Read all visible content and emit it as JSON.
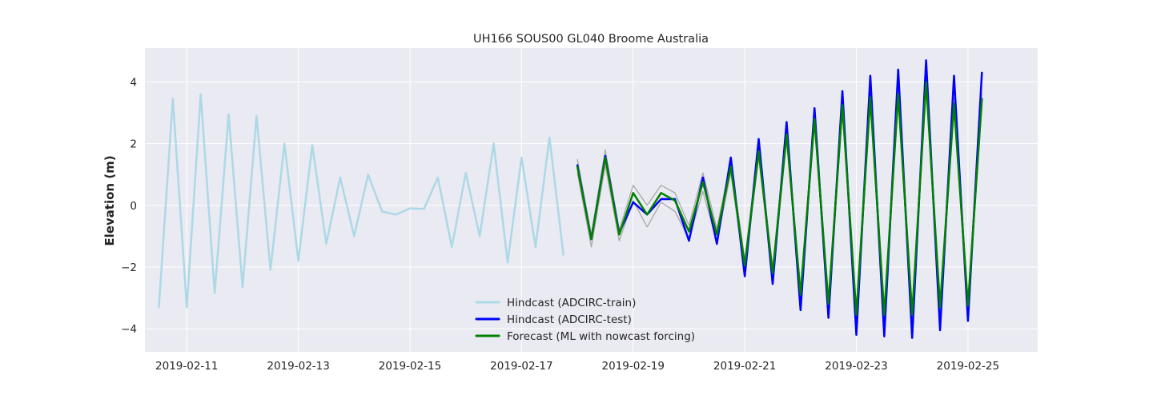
{
  "chart_data": {
    "type": "line",
    "title": "UH166 SOUS00 GL040 Broome Australia",
    "xlabel": "",
    "ylabel": "Elevation (m)",
    "x_axis_type": "date",
    "xlim": [
      "2019-02-10T06:00",
      "2019-02-26T06:00"
    ],
    "ylim": [
      -4.75,
      5.1
    ],
    "x_ticks": [
      "2019-02-11",
      "2019-02-13",
      "2019-02-15",
      "2019-02-17",
      "2019-02-19",
      "2019-02-21",
      "2019-02-23",
      "2019-02-25"
    ],
    "y_ticks": [
      -4,
      -2,
      0,
      2,
      4
    ],
    "y_tick_labels": [
      "−4",
      "−2",
      "0",
      "2",
      "4"
    ],
    "grid": true,
    "background": "#eaeaf2",
    "legend_position": "lower-center",
    "series": [
      {
        "name": "Hindcast (ADCIRC-train)",
        "color": "#add8e6",
        "x": [
          "2019-02-10T12:00",
          "2019-02-10T18:00",
          "2019-02-11T00:00",
          "2019-02-11T06:00",
          "2019-02-11T12:00",
          "2019-02-11T18:00",
          "2019-02-12T00:00",
          "2019-02-12T06:00",
          "2019-02-12T12:00",
          "2019-02-12T18:00",
          "2019-02-13T00:00",
          "2019-02-13T06:00",
          "2019-02-13T12:00",
          "2019-02-13T18:00",
          "2019-02-14T00:00",
          "2019-02-14T06:00",
          "2019-02-14T12:00",
          "2019-02-14T18:00",
          "2019-02-15T00:00",
          "2019-02-15T06:00",
          "2019-02-15T12:00",
          "2019-02-15T18:00",
          "2019-02-16T00:00",
          "2019-02-16T06:00",
          "2019-02-16T12:00",
          "2019-02-16T18:00",
          "2019-02-17T00:00",
          "2019-02-17T06:00",
          "2019-02-17T12:00",
          "2019-02-17T18:00"
        ],
        "y": [
          -3.3,
          3.45,
          -3.3,
          3.6,
          -2.85,
          2.95,
          -2.65,
          2.9,
          -2.1,
          2.0,
          -1.8,
          1.95,
          -1.25,
          0.9,
          -1.0,
          1.0,
          -0.2,
          -0.3,
          -0.1,
          -0.12,
          0.9,
          -1.35,
          1.05,
          -1.0,
          2.0,
          -1.85,
          1.55,
          -1.35,
          2.2,
          -1.6
        ]
      },
      {
        "name": "Hindcast (ADCIRC-test)",
        "color": "#0000ff",
        "x": [
          "2019-02-18T00:00",
          "2019-02-18T06:00",
          "2019-02-18T12:00",
          "2019-02-18T18:00",
          "2019-02-19T00:00",
          "2019-02-19T06:00",
          "2019-02-19T12:00",
          "2019-02-19T18:00",
          "2019-02-20T00:00",
          "2019-02-20T06:00",
          "2019-02-20T12:00",
          "2019-02-20T18:00",
          "2019-02-21T00:00",
          "2019-02-21T06:00",
          "2019-02-21T12:00",
          "2019-02-21T18:00",
          "2019-02-22T00:00",
          "2019-02-22T06:00",
          "2019-02-22T12:00",
          "2019-02-22T18:00",
          "2019-02-23T00:00",
          "2019-02-23T06:00",
          "2019-02-23T12:00",
          "2019-02-23T18:00",
          "2019-02-24T00:00",
          "2019-02-24T06:00",
          "2019-02-24T12:00",
          "2019-02-24T18:00",
          "2019-02-25T00:00",
          "2019-02-25T06:00"
        ],
        "y": [
          1.3,
          -1.1,
          1.6,
          -0.9,
          0.1,
          -0.3,
          0.2,
          0.2,
          -1.15,
          0.9,
          -1.25,
          1.55,
          -2.3,
          2.15,
          -2.55,
          2.7,
          -3.4,
          3.15,
          -3.65,
          3.7,
          -4.2,
          4.2,
          -4.25,
          4.4,
          -4.3,
          4.7,
          -4.05,
          4.2,
          -3.75,
          4.3
        ]
      },
      {
        "name": "Forecast (ML with nowcast forcing)",
        "color": "#008000",
        "x": [
          "2019-02-18T00:00",
          "2019-02-18T06:00",
          "2019-02-18T12:00",
          "2019-02-18T18:00",
          "2019-02-19T00:00",
          "2019-02-19T06:00",
          "2019-02-19T12:00",
          "2019-02-19T18:00",
          "2019-02-20T00:00",
          "2019-02-20T06:00",
          "2019-02-20T12:00",
          "2019-02-20T18:00",
          "2019-02-21T00:00",
          "2019-02-21T06:00",
          "2019-02-21T12:00",
          "2019-02-21T18:00",
          "2019-02-22T00:00",
          "2019-02-22T06:00",
          "2019-02-22T12:00",
          "2019-02-22T18:00",
          "2019-02-23T00:00",
          "2019-02-23T06:00",
          "2019-02-23T12:00",
          "2019-02-23T18:00",
          "2019-02-24T00:00",
          "2019-02-24T06:00",
          "2019-02-24T12:00",
          "2019-02-24T18:00",
          "2019-02-25T00:00",
          "2019-02-25T06:00"
        ],
        "y": [
          1.25,
          -1.1,
          1.55,
          -0.95,
          0.4,
          -0.3,
          0.4,
          0.15,
          -0.85,
          0.75,
          -0.95,
          1.25,
          -1.95,
          1.75,
          -2.2,
          2.3,
          -2.9,
          2.8,
          -3.2,
          3.25,
          -3.55,
          3.5,
          -3.55,
          3.6,
          -3.55,
          4.0,
          -3.3,
          3.3,
          -3.25,
          3.45
        ]
      }
    ],
    "uncertainty_band": {
      "color": "#a8a8a8",
      "x": [
        "2019-02-18T00:00",
        "2019-02-18T06:00",
        "2019-02-18T12:00",
        "2019-02-18T18:00",
        "2019-02-19T00:00",
        "2019-02-19T06:00",
        "2019-02-19T12:00",
        "2019-02-19T18:00",
        "2019-02-20T00:00",
        "2019-02-20T06:00",
        "2019-02-20T12:00",
        "2019-02-20T18:00",
        "2019-02-21T00:00",
        "2019-02-21T06:00",
        "2019-02-21T12:00",
        "2019-02-21T18:00",
        "2019-02-22T00:00",
        "2019-02-22T06:00",
        "2019-02-22T12:00",
        "2019-02-22T18:00",
        "2019-02-23T00:00",
        "2019-02-23T06:00",
        "2019-02-23T12:00",
        "2019-02-23T18:00",
        "2019-02-24T00:00",
        "2019-02-24T06:00",
        "2019-02-24T12:00",
        "2019-02-24T18:00",
        "2019-02-25T00:00",
        "2019-02-25T06:00"
      ],
      "upper": [
        1.5,
        -0.95,
        1.8,
        -0.8,
        0.65,
        0.0,
        0.65,
        0.4,
        -0.65,
        1.05,
        -0.75,
        1.45,
        -1.75,
        1.95,
        -2.0,
        2.5,
        -2.7,
        3.0,
        -3.0,
        3.45,
        -3.35,
        3.7,
        -3.35,
        3.8,
        -3.35,
        4.2,
        -3.1,
        3.5,
        -3.05,
        3.65
      ],
      "lower": [
        1.05,
        -1.35,
        1.3,
        -1.15,
        0.15,
        -0.7,
        0.1,
        -0.2,
        -1.1,
        0.45,
        -1.2,
        1.05,
        -2.15,
        1.55,
        -2.4,
        2.1,
        -3.1,
        2.6,
        -3.4,
        3.05,
        -3.75,
        3.3,
        -3.75,
        3.4,
        -3.75,
        3.8,
        -3.5,
        3.1,
        -3.45,
        3.25
      ]
    }
  }
}
